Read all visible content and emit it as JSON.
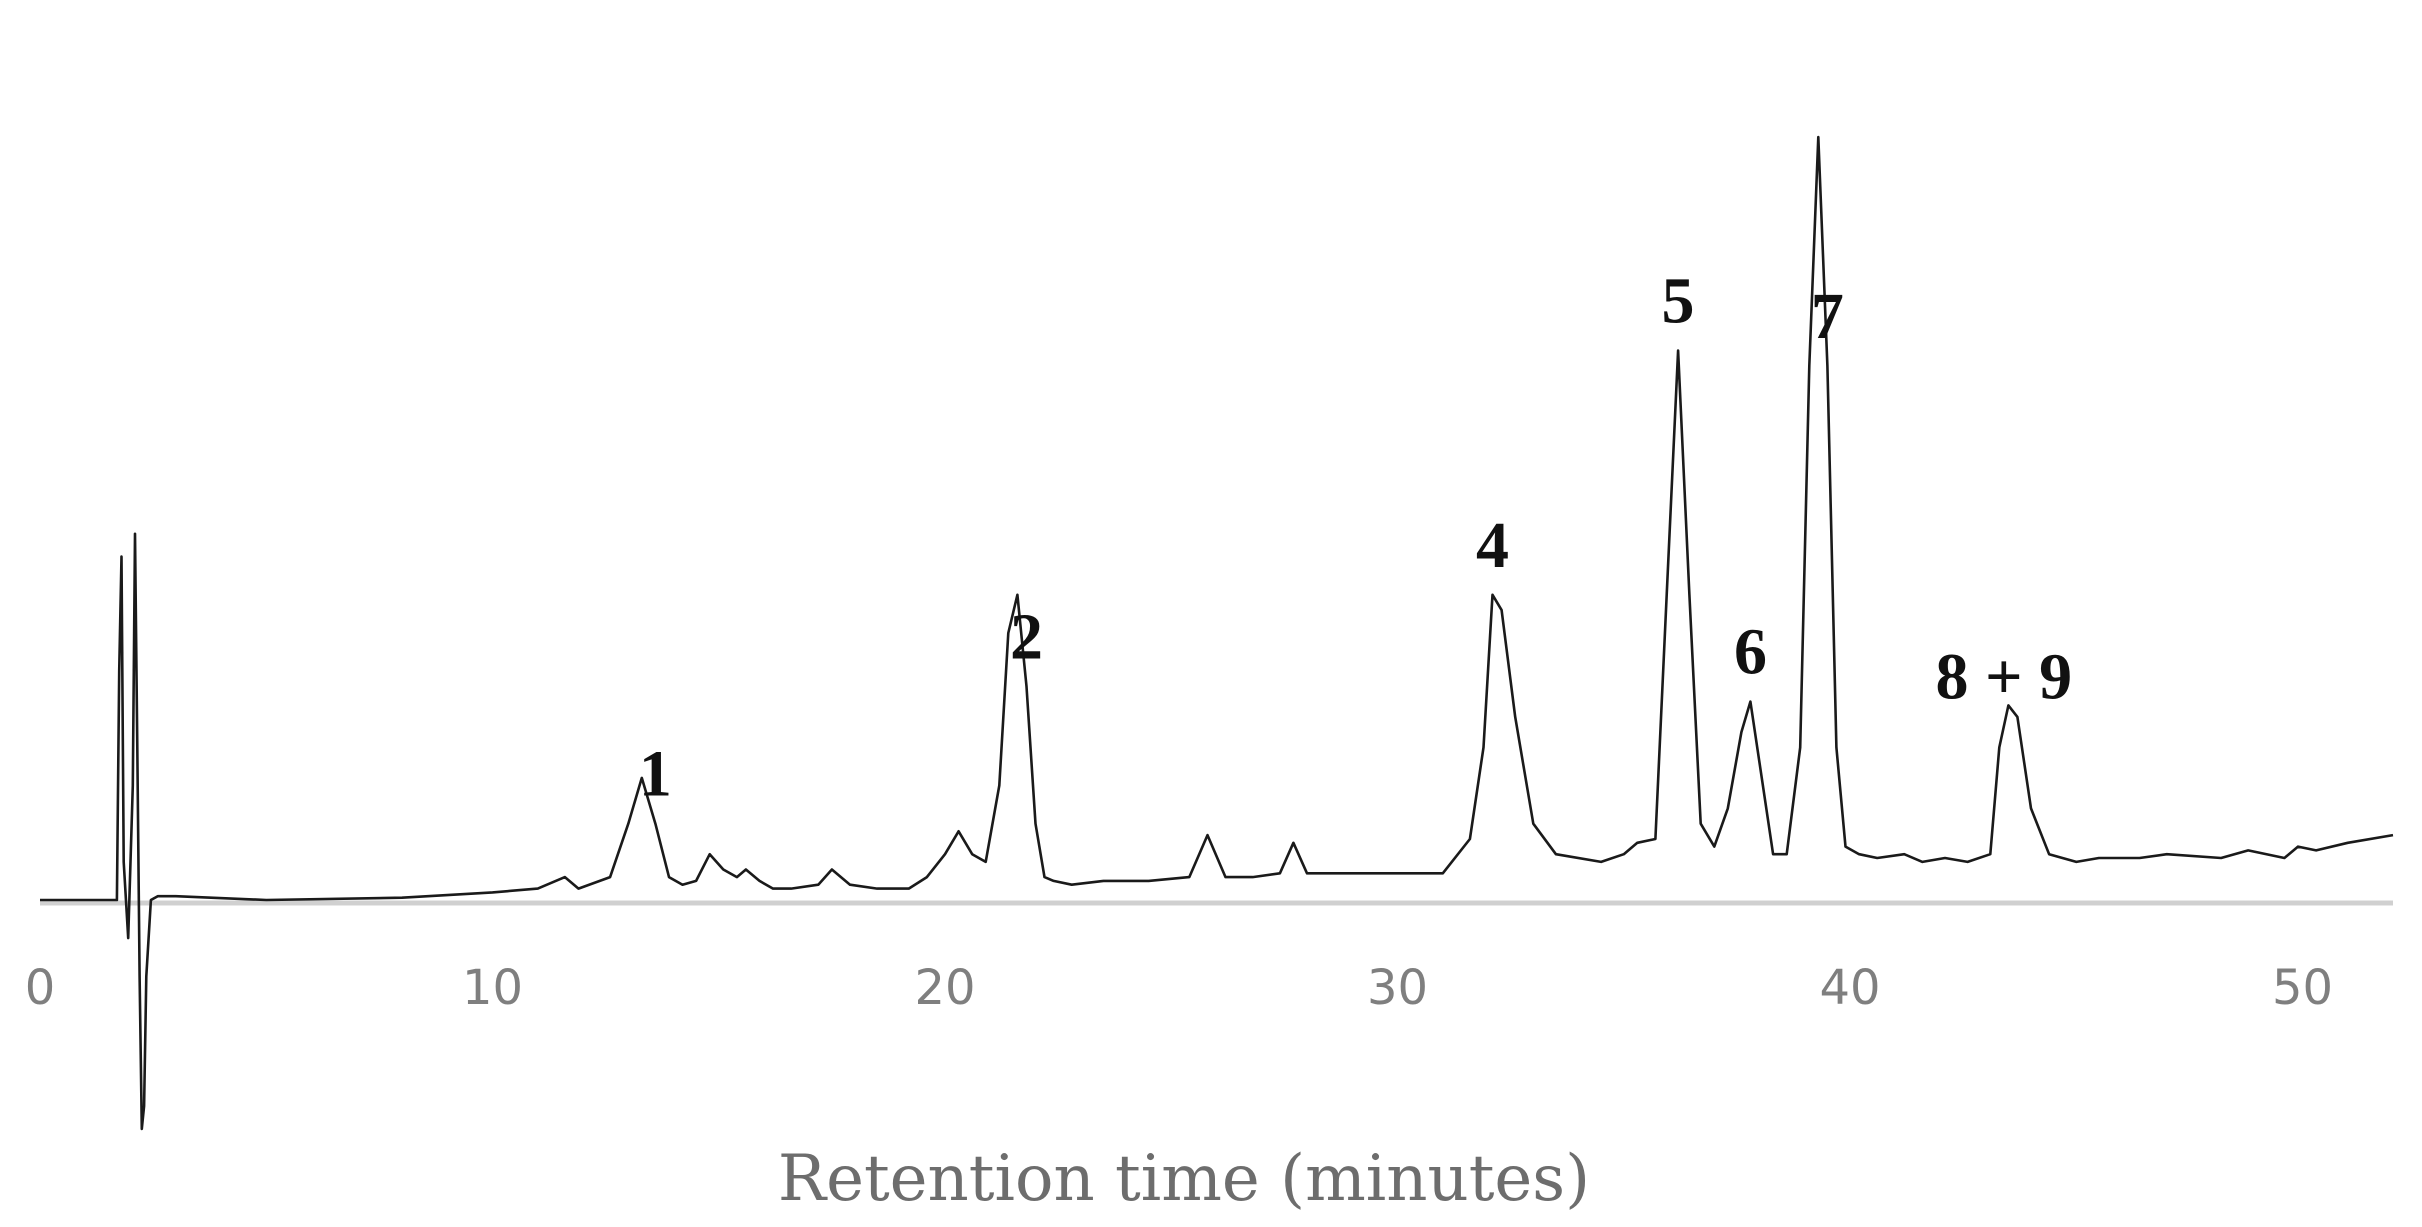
{
  "chart_data": {
    "type": "line",
    "title": "",
    "xlabel": "Retention time (minutes)",
    "ylabel": "",
    "xlim": [
      0,
      52
    ],
    "x_ticks": [
      0,
      10,
      20,
      30,
      40,
      50
    ],
    "x_tick_labels": [
      "0",
      "10",
      "20",
      "30",
      "40",
      "50"
    ],
    "grid": false,
    "legend": "none",
    "line_color": "#1a1a1a",
    "axis_color": "#d0d0d0",
    "units": "relative detector response (estimated, baseline = 0, peak 7 = 100)",
    "series": [
      {
        "x": [
          0,
          1.7,
          1.75,
          1.8,
          1.85,
          1.95,
          2.05,
          2.1,
          2.15,
          2.2,
          2.25,
          2.3,
          2.35,
          2.45,
          2.6,
          3.0,
          5,
          8,
          10,
          11.0,
          11.6,
          11.9,
          12.6,
          13.0,
          13.3,
          13.6,
          13.9,
          14.2,
          14.5,
          14.8,
          15.1,
          15.4,
          15.6,
          15.9,
          16.2,
          16.6,
          17.2,
          17.5,
          17.9,
          18.5,
          19.2,
          19.6,
          20.0,
          20.3,
          20.6,
          20.9,
          21.2,
          21.4,
          21.6,
          21.8,
          22.0,
          22.2,
          22.4,
          22.8,
          23.5,
          24.5,
          25.4,
          25.8,
          26.2,
          26.8,
          27.4,
          27.7,
          28.0,
          28.8,
          30.0,
          31.0,
          31.6,
          31.9,
          32.1,
          32.3,
          32.6,
          33.0,
          33.5,
          34.5,
          35.0,
          35.3,
          35.7,
          35.95,
          36.2,
          36.45,
          36.7,
          37.0,
          37.3,
          37.6,
          37.8,
          38.0,
          38.3,
          38.6,
          38.9,
          39.1,
          39.3,
          39.5,
          39.7,
          39.9,
          40.2,
          40.6,
          41.2,
          41.6,
          42.1,
          42.6,
          43.1,
          43.3,
          43.5,
          43.7,
          44.0,
          44.4,
          45.0,
          45.5,
          46.4,
          47.0,
          48.2,
          48.8,
          49.6,
          49.9,
          50.3,
          51.0,
          52.0
        ],
        "y": [
          0,
          0,
          30,
          45,
          5,
          -5,
          15,
          48,
          20,
          -10,
          -30,
          -27,
          -10,
          0,
          0.5,
          0.5,
          0,
          0.3,
          1,
          1.5,
          3,
          1.5,
          3,
          10,
          16,
          10,
          3,
          2,
          2.5,
          6,
          4,
          3,
          4,
          2.5,
          1.5,
          1.5,
          2,
          4,
          2,
          1.5,
          1.5,
          3,
          6,
          9,
          6,
          5,
          15,
          35,
          40,
          28,
          10,
          3,
          2.5,
          2,
          2.5,
          2.5,
          3,
          8.5,
          3,
          3,
          3.5,
          7.5,
          3.5,
          3.5,
          3.5,
          3.5,
          8,
          20,
          40,
          38,
          24,
          10,
          6,
          5,
          6,
          7.5,
          8,
          40,
          72,
          40,
          10,
          7,
          12,
          22,
          26,
          18,
          6,
          6,
          20,
          70,
          100,
          70,
          20,
          7,
          6,
          5.5,
          6,
          5,
          5.5,
          5,
          6,
          20,
          25.5,
          24,
          12,
          6,
          5,
          5.5,
          5.5,
          6,
          5.5,
          6.5,
          5.5,
          7,
          6.5,
          7.5,
          8.5
        ]
      }
    ],
    "annotations": [
      {
        "text": "1",
        "x": 13.6
      },
      {
        "text": "2",
        "x": 21.8
      },
      {
        "text": "4",
        "x": 32.1
      },
      {
        "text": "5",
        "x": 36.2
      },
      {
        "text": "6",
        "x": 37.8
      },
      {
        "text": "7",
        "x": 39.5
      },
      {
        "text": "8 + 9",
        "x": 43.4
      }
    ]
  }
}
